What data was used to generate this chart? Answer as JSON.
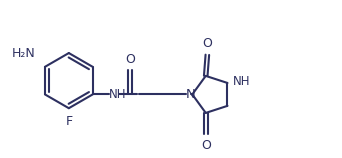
{
  "bg_color": "#ffffff",
  "line_color": "#2d3060",
  "text_color": "#2d3060",
  "line_width": 1.5,
  "font_size": 8.5,
  "fig_width": 3.42,
  "fig_height": 1.58,
  "dpi": 100,
  "xlim": [
    0.0,
    10.5
  ],
  "ylim": [
    0.5,
    5.2
  ]
}
